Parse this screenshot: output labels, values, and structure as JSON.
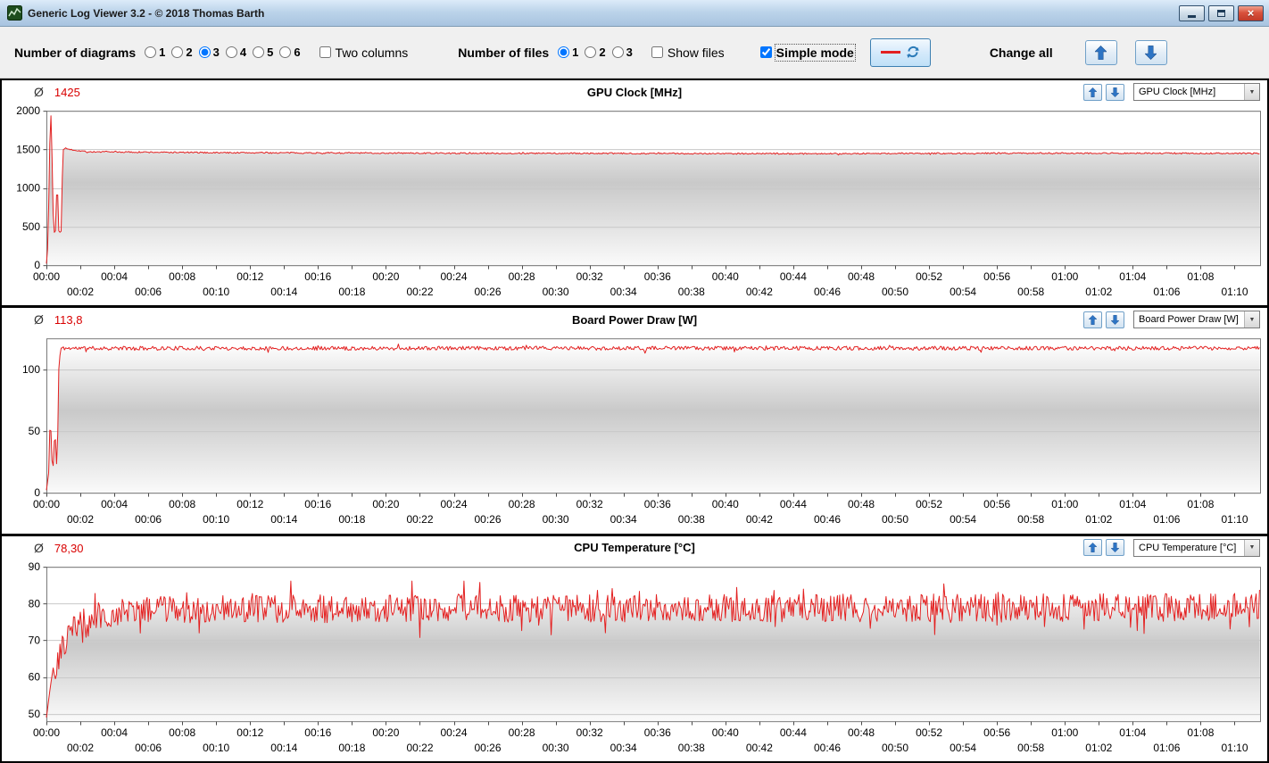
{
  "window": {
    "title": "Generic Log Viewer 3.2 - © 2018 Thomas Barth"
  },
  "toolbar": {
    "diagrams_label": "Number of diagrams",
    "diagram_options": [
      "1",
      "2",
      "3",
      "4",
      "5",
      "6"
    ],
    "diagram_selected": [
      false,
      false,
      true,
      false,
      false,
      false
    ],
    "two_columns_label": "Two columns",
    "two_columns_checked": false,
    "files_label": "Number of files",
    "file_options": [
      "1",
      "2",
      "3"
    ],
    "file_selected": [
      true,
      false,
      false
    ],
    "show_files_label": "Show files",
    "show_files_checked": false,
    "simple_mode_label": "Simple mode",
    "simple_mode_checked": true,
    "change_all_label": "Change all",
    "accent_blue": "#2d74c4",
    "series_red": "#e32020"
  },
  "chart_data": [
    {
      "type": "line",
      "title": "GPU Clock [MHz]",
      "average_label": "Ø",
      "average": "1425",
      "dropdown_value": "GPU Clock [MHz]",
      "color": "#e32020",
      "ylim": [
        0,
        2000
      ],
      "yticks": [
        0,
        500,
        1000,
        1500,
        2000
      ],
      "x_end_seconds": 4290,
      "x_tick_interval_seconds": 120,
      "x_row1_labels": [
        "00:00",
        "00:04",
        "00:08",
        "00:12",
        "00:16",
        "00:20",
        "00:24",
        "00:28",
        "00:32",
        "00:36",
        "00:40",
        "00:44",
        "00:48",
        "00:52",
        "00:56",
        "01:00",
        "01:04",
        "01:08"
      ],
      "x_row2_labels": [
        "00:02",
        "00:06",
        "00:10",
        "00:14",
        "00:18",
        "00:22",
        "00:26",
        "00:30",
        "00:34",
        "00:38",
        "00:42",
        "00:46",
        "00:50",
        "00:54",
        "00:58",
        "01:02",
        "01:06",
        "01:10"
      ],
      "anchors": [
        [
          0,
          20
        ],
        [
          6,
          300
        ],
        [
          10,
          1200
        ],
        [
          14,
          1950
        ],
        [
          18,
          1920
        ],
        [
          22,
          900
        ],
        [
          26,
          430
        ],
        [
          30,
          420
        ],
        [
          34,
          470
        ],
        [
          38,
          1350
        ],
        [
          42,
          470
        ],
        [
          46,
          420
        ],
        [
          52,
          440
        ],
        [
          58,
          1490
        ],
        [
          64,
          1515
        ],
        [
          90,
          1495
        ],
        [
          150,
          1468
        ],
        [
          600,
          1458
        ],
        [
          1500,
          1450
        ],
        [
          2700,
          1445
        ],
        [
          3600,
          1452
        ],
        [
          4290,
          1448
        ]
      ],
      "noise": {
        "start_t": 64,
        "amplitude": 9,
        "spike_chance": 0.03,
        "spike_amplitude": 16
      },
      "seed": 7,
      "dt": 4
    },
    {
      "type": "line",
      "title": "Board Power Draw [W]",
      "average_label": "Ø",
      "average": "113,8",
      "dropdown_value": "Board Power Draw [W]",
      "color": "#e32020",
      "ylim": [
        0,
        125
      ],
      "yticks": [
        0,
        50,
        100
      ],
      "x_end_seconds": 4290,
      "x_tick_interval_seconds": 120,
      "x_row1_labels": [
        "00:00",
        "00:04",
        "00:08",
        "00:12",
        "00:16",
        "00:20",
        "00:24",
        "00:28",
        "00:32",
        "00:36",
        "00:40",
        "00:44",
        "00:48",
        "00:52",
        "00:56",
        "01:00",
        "01:04",
        "01:08"
      ],
      "x_row2_labels": [
        "00:02",
        "00:06",
        "00:10",
        "00:14",
        "00:18",
        "00:22",
        "00:26",
        "00:30",
        "00:34",
        "00:38",
        "00:42",
        "00:46",
        "00:50",
        "00:54",
        "00:58",
        "01:02",
        "01:06",
        "01:10"
      ],
      "anchors": [
        [
          0,
          2
        ],
        [
          8,
          16
        ],
        [
          14,
          68
        ],
        [
          18,
          32
        ],
        [
          22,
          20
        ],
        [
          26,
          24
        ],
        [
          30,
          60
        ],
        [
          34,
          26
        ],
        [
          38,
          21
        ],
        [
          44,
          100
        ],
        [
          50,
          117
        ],
        [
          4290,
          117
        ]
      ],
      "noise": {
        "start_t": 52,
        "amplitude": 1.6,
        "spike_chance": 0.04,
        "spike_amplitude": 3
      },
      "seed": 11,
      "dt": 4
    },
    {
      "type": "line",
      "title": "CPU Temperature [°C]",
      "average_label": "Ø",
      "average": "78,30",
      "dropdown_value": "CPU Temperature [°C]",
      "color": "#e32020",
      "ylim": [
        48,
        90
      ],
      "yticks": [
        50,
        60,
        70,
        80,
        90
      ],
      "x_end_seconds": 4290,
      "x_tick_interval_seconds": 120,
      "x_row1_labels": [
        "00:00",
        "00:04",
        "00:08",
        "00:12",
        "00:16",
        "00:20",
        "00:24",
        "00:28",
        "00:32",
        "00:36",
        "00:40",
        "00:44",
        "00:48",
        "00:52",
        "00:56",
        "01:00",
        "01:04",
        "01:08"
      ],
      "x_row2_labels": [
        "00:02",
        "00:06",
        "00:10",
        "00:14",
        "00:18",
        "00:22",
        "00:26",
        "00:30",
        "00:34",
        "00:38",
        "00:42",
        "00:46",
        "00:50",
        "00:54",
        "00:58",
        "01:02",
        "01:06",
        "01:10"
      ],
      "anchors": [
        [
          0,
          49
        ],
        [
          15,
          58
        ],
        [
          25,
          63
        ],
        [
          35,
          60
        ],
        [
          45,
          66
        ],
        [
          60,
          68
        ],
        [
          80,
          71
        ],
        [
          100,
          74
        ],
        [
          130,
          72
        ],
        [
          160,
          76
        ],
        [
          200,
          77
        ],
        [
          260,
          78
        ],
        [
          400,
          78.5
        ],
        [
          4290,
          79
        ]
      ],
      "noise": {
        "start_t": 28,
        "amplitude": 3.8,
        "spike_chance": 0.1,
        "spike_amplitude": 5.5
      },
      "seed": 23,
      "dt": 4
    }
  ]
}
